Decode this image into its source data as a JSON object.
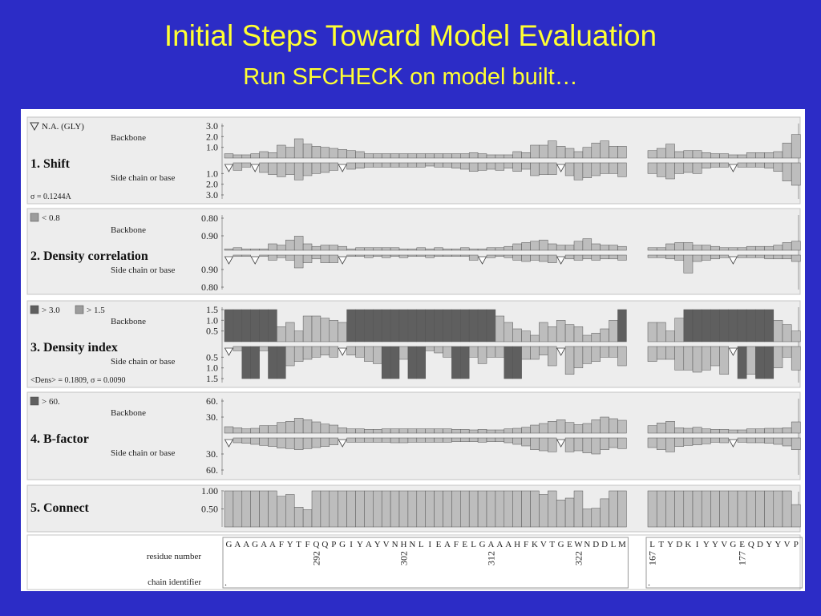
{
  "slide": {
    "title": "Initial Steps Toward Model Evaluation",
    "subtitle": "Run SFCHECK on model built…"
  },
  "colors": {
    "background": "#2c2cc6",
    "title": "#ffff33",
    "panel_bg": "#ededed",
    "bar_light": "#bdbdbd",
    "bar_mid": "#9c9c9c",
    "bar_dark": "#5f5f5f",
    "bar_edge": "#555555"
  },
  "chart_data": {
    "type": "bar",
    "row_labels": {
      "top": "Backbone",
      "bottom": "Side chain or base"
    },
    "residues": {
      "label": "residue number",
      "chain_label": "chain identifier",
      "chain_a": "GAAGAAFYTFQQPGIYAYVNHNLIEAFELGAAAHFKVTGEWNDDLM",
      "chain_b": "LTYDKIYYVGEQDYYVP",
      "numbers_a": [
        {
          "index": 10,
          "value": "292"
        },
        {
          "index": 20,
          "value": "302"
        },
        {
          "index": 30,
          "value": "312"
        },
        {
          "index": 40,
          "value": "322"
        }
      ],
      "numbers_b": [
        {
          "index": 0,
          "value": "167"
        },
        {
          "index": 10,
          "value": "177"
        }
      ],
      "chain_ids": [
        ".",
        "."
      ]
    },
    "panels": [
      {
        "title": "1. Shift",
        "legend": [
          {
            "symbol": "triangle",
            "text": "N.A. (GLY)"
          }
        ],
        "note": "σ = 0.1244A",
        "top_ticks": [
          "3.0",
          "2.0",
          "1.0"
        ],
        "bottom_ticks": [
          "1.0",
          "2.0",
          "3.0"
        ],
        "ymax": 3.0,
        "gly_markers_a": [
          0,
          3,
          13,
          38
        ],
        "gly_markers_b": [
          9
        ],
        "backbone_a": [
          0.4,
          0.3,
          0.3,
          0.4,
          0.6,
          0.5,
          1.2,
          1.0,
          1.8,
          1.3,
          1.1,
          1.0,
          0.9,
          0.8,
          0.7,
          0.6,
          0.4,
          0.4,
          0.4,
          0.4,
          0.4,
          0.4,
          0.4,
          0.4,
          0.4,
          0.4,
          0.4,
          0.4,
          0.5,
          0.4,
          0.3,
          0.3,
          0.3,
          0.6,
          0.5,
          1.2,
          1.2,
          1.6,
          1.1,
          0.9,
          0.6,
          1.0,
          1.4,
          1.6,
          1.1,
          1.1
        ],
        "backbone_b": [
          0.7,
          0.9,
          1.3,
          0.6,
          0.7,
          0.7,
          0.5,
          0.4,
          0.4,
          0.3,
          0.3,
          0.5,
          0.5,
          0.5,
          0.6,
          1.4,
          2.2
        ],
        "side_a": [
          0.6,
          0.7,
          0.4,
          0.6,
          0.9,
          1.1,
          1.3,
          1.1,
          1.6,
          1.2,
          1.0,
          0.9,
          0.7,
          0.4,
          0.6,
          0.5,
          0.4,
          0.4,
          0.4,
          0.4,
          0.4,
          0.4,
          0.4,
          0.3,
          0.4,
          0.4,
          0.5,
          0.6,
          0.8,
          0.7,
          0.6,
          0.7,
          0.5,
          0.8,
          0.6,
          1.2,
          1.1,
          1.1,
          0.9,
          1.2,
          1.6,
          1.4,
          1.2,
          1.0,
          1.0,
          1.3
        ],
        "side_b": [
          1.0,
          1.3,
          1.5,
          1.0,
          0.9,
          1.0,
          0.5,
          0.4,
          0.4,
          0.3,
          0.4,
          0.4,
          0.4,
          0.5,
          0.8,
          1.7,
          2.1
        ],
        "dark_threshold": null,
        "mid_threshold": null
      },
      {
        "title": "2. Density correlation",
        "legend": [
          {
            "symbol": "square-mid",
            "text": "< 0.8"
          }
        ],
        "note": "",
        "top_ticks": [
          "0.80",
          "0.90"
        ],
        "bottom_ticks": [
          "0.90",
          "0.80"
        ],
        "ymax": 0.25,
        "gly_markers_a": [
          0,
          3,
          13,
          29,
          38
        ],
        "gly_markers_b": [
          9
        ],
        "backbone_a": [
          0.01,
          0.02,
          0.01,
          0.01,
          0.01,
          0.05,
          0.04,
          0.08,
          0.11,
          0.05,
          0.03,
          0.04,
          0.04,
          0.03,
          0.01,
          0.02,
          0.02,
          0.02,
          0.02,
          0.02,
          0.01,
          0.01,
          0.02,
          0.01,
          0.02,
          0.01,
          0.01,
          0.02,
          0.01,
          0.01,
          0.02,
          0.02,
          0.03,
          0.05,
          0.06,
          0.07,
          0.08,
          0.05,
          0.04,
          0.04,
          0.07,
          0.09,
          0.05,
          0.04,
          0.04,
          0.03
        ],
        "backbone_b": [
          0.02,
          0.02,
          0.05,
          0.06,
          0.06,
          0.04,
          0.04,
          0.03,
          0.02,
          0.02,
          0.02,
          0.03,
          0.03,
          0.03,
          0.04,
          0.06,
          0.07
        ],
        "side_a": [
          0.01,
          0.01,
          0.01,
          0.02,
          0.01,
          0.04,
          0.02,
          0.04,
          0.1,
          0.06,
          0.03,
          0.06,
          0.06,
          0.04,
          0.01,
          0.01,
          0.02,
          0.01,
          0.02,
          0.01,
          0.02,
          0.01,
          0.01,
          0.02,
          0.01,
          0.01,
          0.01,
          0.01,
          0.04,
          0.03,
          0.02,
          0.01,
          0.02,
          0.04,
          0.05,
          0.04,
          0.05,
          0.06,
          0.05,
          0.03,
          0.04,
          0.03,
          0.04,
          0.03,
          0.03,
          0.04
        ],
        "side_b": [
          0.02,
          0.02,
          0.03,
          0.04,
          0.14,
          0.05,
          0.04,
          0.03,
          0.02,
          0.02,
          0.02,
          0.02,
          0.02,
          0.03,
          0.03,
          0.03,
          0.05
        ],
        "dark_threshold": null,
        "mid_threshold": null
      },
      {
        "title": "3. Density index",
        "legend": [
          {
            "symbol": "square-dark",
            "text": "> 3.0"
          },
          {
            "symbol": "square-mid",
            "text": "> 1.5"
          }
        ],
        "note": "<Dens> = 0.1809,   σ = 0.0090",
        "top_ticks": [
          "1.5",
          "1.0",
          "0.5"
        ],
        "bottom_ticks": [
          "0.5",
          "1.0",
          "1.5"
        ],
        "ymax": 1.5,
        "gly_markers_a": [
          0,
          13,
          38
        ],
        "gly_markers_b": [
          9
        ],
        "backbone_a": [
          1.5,
          1.5,
          1.5,
          1.5,
          1.5,
          1.5,
          0.7,
          0.9,
          0.5,
          1.2,
          1.2,
          1.1,
          1.0,
          0.9,
          1.5,
          1.5,
          1.5,
          1.5,
          1.5,
          1.5,
          1.5,
          1.5,
          1.5,
          1.5,
          1.5,
          1.5,
          1.5,
          1.5,
          1.5,
          1.5,
          1.5,
          1.2,
          0.9,
          0.6,
          0.5,
          0.3,
          0.9,
          0.7,
          1.0,
          0.8,
          0.7,
          0.3,
          0.4,
          0.6,
          1.0,
          1.5
        ],
        "backbone_b": [
          0.9,
          0.9,
          0.5,
          1.1,
          1.5,
          1.5,
          1.5,
          1.5,
          1.5,
          1.5,
          1.5,
          1.5,
          1.5,
          1.5,
          1.0,
          0.8,
          0.5
        ],
        "side_a": [
          0.1,
          0.2,
          1.5,
          1.5,
          0.2,
          1.5,
          1.5,
          0.9,
          0.7,
          0.6,
          0.5,
          0.4,
          0.5,
          0.2,
          0.4,
          0.5,
          0.7,
          0.8,
          1.5,
          1.5,
          0.6,
          1.5,
          1.5,
          0.2,
          0.3,
          0.5,
          1.5,
          1.5,
          0.5,
          0.8,
          0.5,
          0.5,
          1.5,
          1.5,
          0.6,
          0.6,
          0.4,
          0.9,
          1.1,
          1.3,
          1.0,
          0.8,
          0.7,
          0.5,
          0.5,
          0.9
        ],
        "side_b": [
          0.7,
          0.6,
          0.6,
          1.1,
          1.1,
          1.2,
          1.1,
          0.9,
          1.3,
          1.4,
          1.5,
          1.3,
          1.5,
          1.5,
          1.0,
          0.5,
          1.1
        ],
        "dark_threshold": 1.49,
        "mid_threshold": null
      },
      {
        "title": "4. B-factor",
        "legend": [
          {
            "symbol": "square-dark",
            "text": "> 60."
          }
        ],
        "note": "",
        "top_ticks": [
          "60.",
          "30."
        ],
        "bottom_ticks": [
          "30.",
          "60."
        ],
        "ymax": 60.0,
        "gly_markers_a": [
          0,
          13,
          38
        ],
        "gly_markers_b": [
          9
        ],
        "backbone_a": [
          12,
          10,
          8,
          9,
          14,
          14,
          20,
          22,
          28,
          25,
          21,
          17,
          15,
          10,
          8,
          8,
          7,
          7,
          8,
          8,
          8,
          8,
          8,
          8,
          8,
          8,
          7,
          7,
          6,
          7,
          6,
          6,
          8,
          9,
          11,
          15,
          18,
          22,
          25,
          20,
          16,
          18,
          25,
          30,
          27,
          24
        ],
        "backbone_b": [
          14,
          19,
          22,
          10,
          9,
          11,
          8,
          7,
          7,
          6,
          6,
          8,
          8,
          9,
          9,
          10,
          21
        ],
        "side_a": [
          6,
          9,
          10,
          12,
          14,
          16,
          19,
          20,
          22,
          20,
          18,
          16,
          13,
          9,
          8,
          8,
          8,
          8,
          8,
          9,
          9,
          8,
          8,
          8,
          8,
          8,
          7,
          7,
          7,
          8,
          7,
          7,
          9,
          12,
          15,
          22,
          24,
          26,
          28,
          26,
          24,
          28,
          30,
          22,
          18,
          20
        ],
        "side_b": [
          18,
          22,
          26,
          16,
          14,
          13,
          11,
          8,
          9,
          8,
          8,
          9,
          9,
          10,
          12,
          15,
          22
        ],
        "dark_threshold": null,
        "mid_threshold": null
      },
      {
        "title": "5. Connect",
        "legend": [],
        "note": "",
        "top_ticks": [
          "1.00",
          "0.50"
        ],
        "bottom_ticks": [],
        "ymax": 1.0,
        "gly_markers_a": [],
        "gly_markers_b": [],
        "backbone_a": [
          1.0,
          1.0,
          1.0,
          1.0,
          1.0,
          1.0,
          0.85,
          0.9,
          0.55,
          0.48,
          1.0,
          1.0,
          1.0,
          1.0,
          1.0,
          1.0,
          1.0,
          1.0,
          1.0,
          1.0,
          1.0,
          1.0,
          1.0,
          1.0,
          1.0,
          1.0,
          1.0,
          1.0,
          1.0,
          1.0,
          1.0,
          1.0,
          1.0,
          1.0,
          1.0,
          1.0,
          0.9,
          1.0,
          0.75,
          0.8,
          1.0,
          0.5,
          0.52,
          0.78,
          1.0,
          1.0
        ],
        "backbone_b": [
          1.0,
          1.0,
          1.0,
          1.0,
          1.0,
          1.0,
          1.0,
          1.0,
          1.0,
          1.0,
          1.0,
          1.0,
          1.0,
          1.0,
          1.0,
          1.0,
          0.62
        ],
        "side_a": [],
        "side_b": [],
        "dark_threshold": null,
        "mid_threshold": null
      }
    ]
  }
}
